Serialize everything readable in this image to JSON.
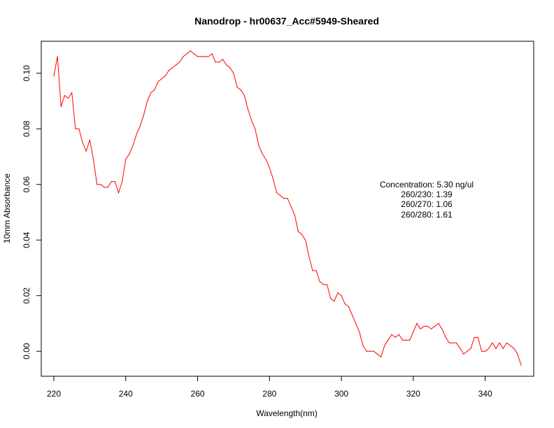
{
  "chart_data": {
    "type": "line",
    "title": "Nanodrop - hr00637_Acc#5949-Sheared",
    "xlabel": "Wavelength(nm)",
    "ylabel": "10mm Absorbance",
    "xlim": [
      216.5,
      353.5
    ],
    "ylim": [
      -0.009,
      0.1115
    ],
    "xticks": [
      220,
      240,
      260,
      280,
      300,
      320,
      340
    ],
    "xtick_labels": [
      "220",
      "240",
      "260",
      "280",
      "300",
      "320",
      "340"
    ],
    "yticks": [
      0.0,
      0.02,
      0.04,
      0.06,
      0.08,
      0.1
    ],
    "ytick_labels": [
      "0.00",
      "0.02",
      "0.04",
      "0.06",
      "0.08",
      "0.10"
    ],
    "grid": false,
    "series": [
      {
        "color": "#ff0000",
        "x": [
          220,
          221,
          222,
          223,
          224,
          225,
          226,
          227,
          228,
          229,
          230,
          231,
          232,
          233,
          234,
          235,
          236,
          237,
          238,
          239,
          240,
          241,
          242,
          243,
          244,
          245,
          246,
          247,
          248,
          249,
          250,
          251,
          252,
          253,
          254,
          255,
          256,
          257,
          258,
          259,
          260,
          261,
          262,
          263,
          264,
          265,
          266,
          267,
          268,
          269,
          270,
          271,
          272,
          273,
          274,
          275,
          276,
          277,
          278,
          279,
          280,
          281,
          282,
          283,
          284,
          285,
          286,
          287,
          288,
          289,
          290,
          291,
          292,
          293,
          294,
          295,
          296,
          297,
          298,
          299,
          300,
          301,
          302,
          303,
          304,
          305,
          306,
          307,
          308,
          309,
          310,
          311,
          312,
          313,
          314,
          315,
          316,
          317,
          318,
          319,
          320,
          321,
          322,
          323,
          324,
          325,
          326,
          327,
          328,
          329,
          330,
          331,
          332,
          333,
          334,
          335,
          336,
          337,
          338,
          339,
          340,
          341,
          342,
          343,
          344,
          345,
          346,
          347,
          348,
          349,
          350
        ],
        "y": [
          0.099,
          0.106,
          0.088,
          0.092,
          0.091,
          0.093,
          0.08,
          0.08,
          0.075,
          0.072,
          0.076,
          0.069,
          0.06,
          0.06,
          0.059,
          0.059,
          0.061,
          0.061,
          0.057,
          0.061,
          0.069,
          0.071,
          0.074,
          0.078,
          0.081,
          0.085,
          0.09,
          0.093,
          0.094,
          0.097,
          0.098,
          0.099,
          0.101,
          0.102,
          0.103,
          0.104,
          0.106,
          0.107,
          0.108,
          0.107,
          0.106,
          0.106,
          0.106,
          0.106,
          0.107,
          0.104,
          0.104,
          0.105,
          0.103,
          0.102,
          0.1,
          0.095,
          0.094,
          0.092,
          0.087,
          0.083,
          0.08,
          0.074,
          0.071,
          0.069,
          0.066,
          0.062,
          0.057,
          0.056,
          0.055,
          0.055,
          0.052,
          0.049,
          0.043,
          0.042,
          0.04,
          0.034,
          0.029,
          0.029,
          0.025,
          0.024,
          0.024,
          0.019,
          0.018,
          0.021,
          0.02,
          0.017,
          0.016,
          0.013,
          0.01,
          0.007,
          0.002,
          0.0,
          0.0,
          0.0,
          -0.001,
          -0.002,
          0.002,
          0.004,
          0.006,
          0.005,
          0.006,
          0.004,
          0.004,
          0.004,
          0.007,
          0.01,
          0.008,
          0.009,
          0.009,
          0.008,
          0.009,
          0.01,
          0.008,
          0.005,
          0.003,
          0.003,
          0.003,
          0.001,
          -0.001,
          0.0,
          0.001,
          0.005,
          0.005,
          0.0,
          0.0,
          0.001,
          0.003,
          0.001,
          0.003,
          0.001,
          0.003,
          0.002,
          0.001,
          -0.001,
          -0.005
        ]
      }
    ],
    "annotations": [
      "Concentration: 5.30 ng/ul",
      "260/230: 1.39",
      "260/270: 1.06",
      "260/280: 1.61"
    ]
  }
}
